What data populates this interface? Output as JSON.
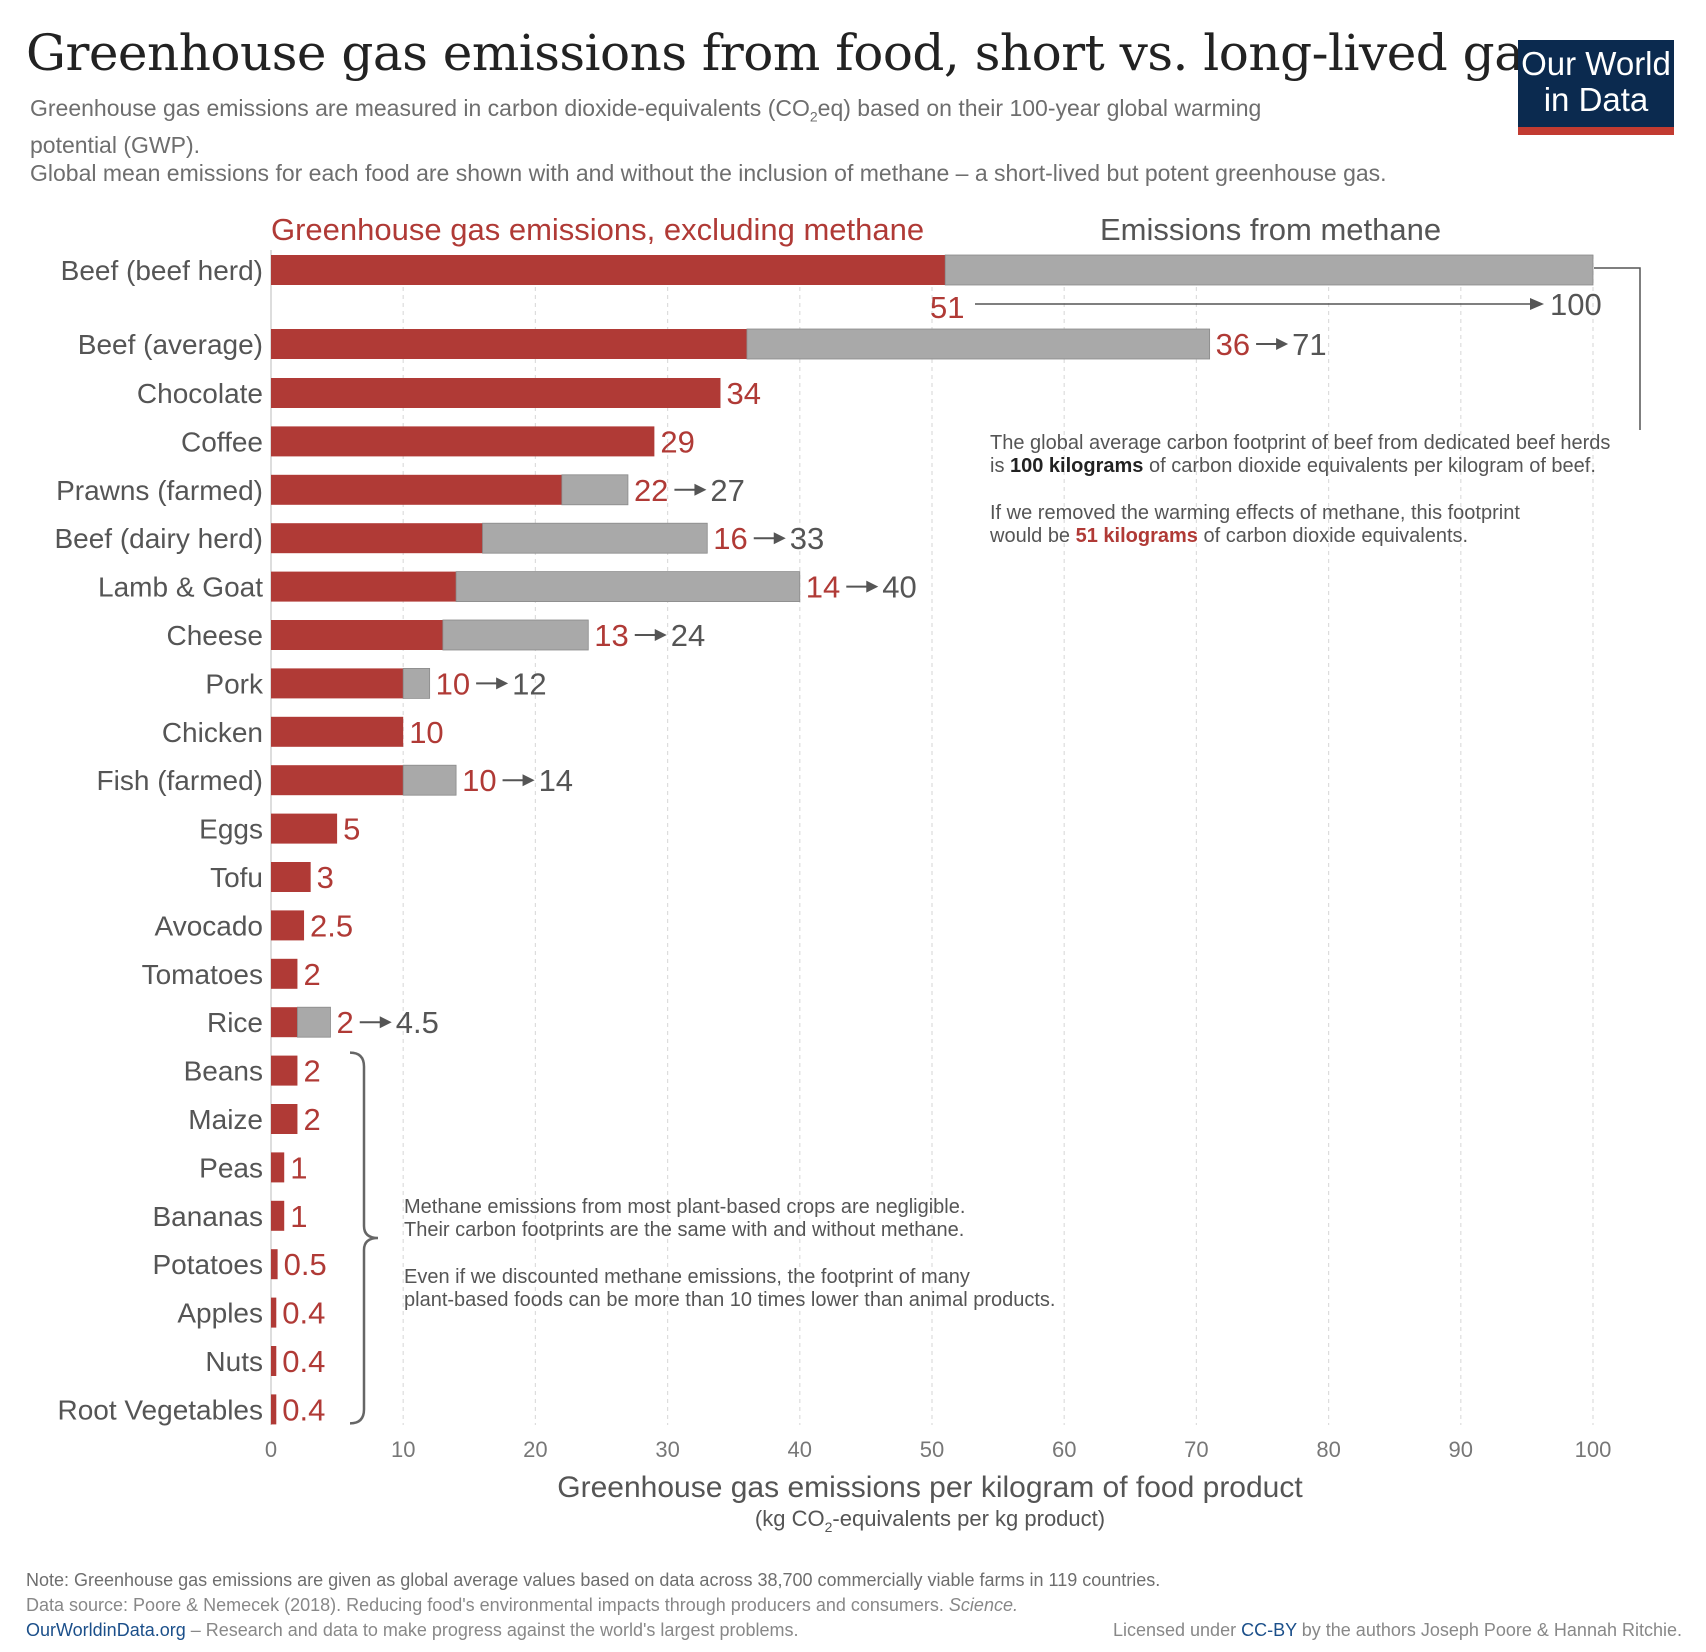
{
  "header": {
    "title": "Greenhouse gas emissions from food, short vs. long-lived gases",
    "subtitle_line1_pre": "Greenhouse gas emissions are measured in carbon dioxide-equivalents (CO",
    "subtitle_line1_sub": "2",
    "subtitle_line1_post": "eq) based on their 100-year global warming",
    "subtitle_line2": "potential (GWP).",
    "subtitle_line3": "Global mean emissions for each food are shown with and without the inclusion of methane – a short-lived but potent greenhouse gas."
  },
  "logo": {
    "line1": "Our World",
    "line2": "in Data",
    "bg": "#0b2a4f",
    "accent": "#c23b31"
  },
  "chart_data": {
    "type": "bar",
    "orientation": "horizontal",
    "stacked": true,
    "legend": {
      "excluding_methane": "Greenhouse gas emissions, excluding methane",
      "methane": "Emissions from methane"
    },
    "colors": {
      "excluding_methane": "#b03a36",
      "methane": "#a9a9a9",
      "label_red": "#b03a36",
      "label_grey": "#555555"
    },
    "xlabel": "Greenhouse gas emissions per kilogram of food product",
    "xlabel_sub_pre": "(kg CO",
    "xlabel_sub_sub": "2",
    "xlabel_sub_post": "-equivalents per kg product)",
    "xlim": [
      0,
      100
    ],
    "xticks": [
      0,
      10,
      20,
      30,
      40,
      50,
      60,
      70,
      80,
      90,
      100
    ],
    "grid": true,
    "categories": [
      "Beef (beef herd)",
      "Beef (average)",
      "Chocolate",
      "Coffee",
      "Prawns (farmed)",
      "Beef (dairy herd)",
      "Lamb & Goat",
      "Cheese",
      "Pork",
      "Chicken",
      "Fish (farmed)",
      "Eggs",
      "Tofu",
      "Avocado",
      "Tomatoes",
      "Rice",
      "Beans",
      "Maize",
      "Peas",
      "Bananas",
      "Potatoes",
      "Apples",
      "Nuts",
      "Root Vegetables"
    ],
    "series": [
      {
        "name": "Greenhouse gas emissions, excluding methane",
        "values": [
          51,
          36,
          34,
          29,
          22,
          16,
          14,
          13,
          10,
          10,
          10,
          5,
          3,
          2.5,
          2,
          2,
          2,
          2,
          1,
          1,
          0.5,
          0.4,
          0.4,
          0.4
        ]
      },
      {
        "name": "Emissions from methane",
        "values": [
          49,
          35,
          0,
          0,
          5,
          17,
          26,
          11,
          2,
          0,
          4,
          0,
          0,
          0,
          0,
          2.5,
          0,
          0,
          0,
          0,
          0,
          0,
          0,
          0
        ]
      }
    ],
    "bar_labels_excl": [
      "51",
      "36",
      "34",
      "29",
      "22",
      "16",
      "14",
      "13",
      "10",
      "10",
      "10",
      "5",
      "3",
      "2.5",
      "2",
      "2",
      "2",
      "2",
      "1",
      "1",
      "0.5",
      "0.4",
      "0.4",
      "0.4"
    ],
    "bar_labels_total": [
      "100",
      "71",
      "",
      "",
      "27",
      "33",
      "40",
      "24",
      "12",
      "",
      "14",
      "",
      "",
      "",
      "",
      "4.5",
      "",
      "",
      "",
      "",
      "",
      "",
      "",
      ""
    ]
  },
  "annotations": {
    "beef_line1": "The global average carbon footprint of beef from dedicated beef herds",
    "beef_line2_pre": "is ",
    "beef_line2_bold": "100 kilograms",
    "beef_line2_post": " of carbon dioxide equivalents per kilogram of beef.",
    "beef_line3": "If we removed the warming effects of methane, this footprint",
    "beef_line4_pre": "would be ",
    "beef_line4_bold": "51 kilograms",
    "beef_line4_post": " of carbon dioxide equivalents.",
    "plant_line1": "Methane emissions from most plant-based crops are negligible.",
    "plant_line2": "Their carbon footprints are the same with and without methane.",
    "plant_line3": "Even if we discounted methane emissions, the footprint of many",
    "plant_line4": "plant-based foods can be more than 10 times lower than animal products."
  },
  "footer": {
    "note": "Note: Greenhouse gas emissions are given as global average values based on data across 38,700 commercially viable farms in 119 countries.",
    "source_pre": "Data source: Poore & Nemecek (2018). Reducing food's environmental impacts through producers and consumers. ",
    "source_journal": "Science.",
    "site": "OurWorldinData.org",
    "site_desc": " – Research and data to make progress against the world's largest problems.",
    "license_pre": "Licensed under ",
    "license_cc": "CC-BY",
    "license_post": " by the authors Joseph Poore & Hannah Ritchie."
  }
}
